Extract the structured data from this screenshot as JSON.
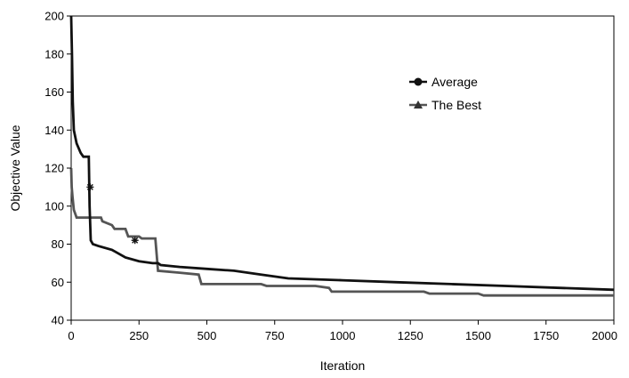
{
  "chart_data": {
    "type": "line",
    "title": "",
    "xlabel": "Iteration",
    "ylabel": "Objective Value",
    "xlim": [
      0,
      2000
    ],
    "ylim": [
      40,
      200
    ],
    "xticks": [
      0,
      250,
      500,
      750,
      1000,
      1250,
      1500,
      1750,
      2000
    ],
    "yticks": [
      40,
      60,
      80,
      100,
      120,
      140,
      160,
      180,
      200
    ],
    "grid": false,
    "legend": "upper-right-inside",
    "series": [
      {
        "name": "Average",
        "color": "#111111",
        "marker": "circle",
        "points": [
          [
            0,
            200
          ],
          [
            3,
            180
          ],
          [
            6,
            155
          ],
          [
            10,
            140
          ],
          [
            20,
            133
          ],
          [
            35,
            128
          ],
          [
            45,
            126
          ],
          [
            65,
            126
          ],
          [
            68,
            100
          ],
          [
            72,
            82
          ],
          [
            80,
            80
          ],
          [
            100,
            79
          ],
          [
            150,
            77
          ],
          [
            200,
            73
          ],
          [
            250,
            71
          ],
          [
            300,
            70
          ],
          [
            320,
            70
          ],
          [
            330,
            69
          ],
          [
            400,
            68
          ],
          [
            500,
            67
          ],
          [
            600,
            66
          ],
          [
            700,
            64
          ],
          [
            800,
            62
          ],
          [
            1000,
            61
          ],
          [
            1200,
            60
          ],
          [
            1400,
            59
          ],
          [
            1600,
            58
          ],
          [
            1800,
            57
          ],
          [
            2000,
            56
          ]
        ]
      },
      {
        "name": "The Best",
        "color": "#555555",
        "marker": "triangle",
        "points": [
          [
            0,
            120
          ],
          [
            2,
            110
          ],
          [
            5,
            105
          ],
          [
            10,
            98
          ],
          [
            20,
            94
          ],
          [
            80,
            94
          ],
          [
            110,
            94
          ],
          [
            115,
            92
          ],
          [
            150,
            90
          ],
          [
            160,
            88
          ],
          [
            200,
            88
          ],
          [
            210,
            84
          ],
          [
            250,
            84
          ],
          [
            260,
            83
          ],
          [
            310,
            83
          ],
          [
            320,
            66
          ],
          [
            400,
            65
          ],
          [
            470,
            64
          ],
          [
            480,
            59
          ],
          [
            700,
            59
          ],
          [
            720,
            58
          ],
          [
            900,
            58
          ],
          [
            950,
            57
          ],
          [
            960,
            55
          ],
          [
            1300,
            55
          ],
          [
            1320,
            54
          ],
          [
            1500,
            54
          ],
          [
            1520,
            53
          ],
          [
            2000,
            53
          ]
        ]
      }
    ],
    "annotations": [
      {
        "type": "star-marker",
        "x": 70,
        "y": 110
      },
      {
        "type": "star-marker",
        "x": 235,
        "y": 82
      }
    ]
  }
}
